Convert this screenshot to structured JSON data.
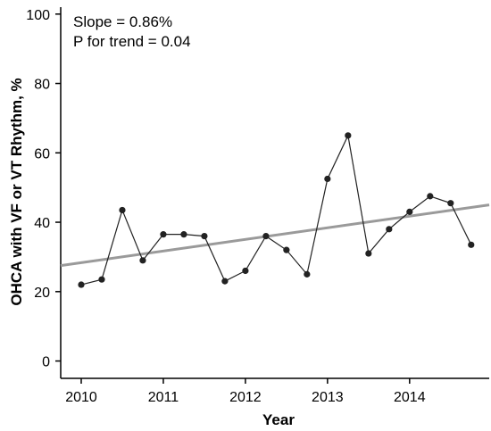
{
  "chart_data": {
    "type": "line",
    "xlabel": "Year",
    "ylabel": "OHCA with VF or VT Rhythm, %",
    "xlim": [
      2009.75,
      2014.97
    ],
    "ylim": [
      -5,
      102
    ],
    "x_ticks": [
      2010,
      2011,
      2012,
      2013,
      2014
    ],
    "y_ticks": [
      0,
      20,
      40,
      60,
      80,
      100
    ],
    "grid": false,
    "legend": "none",
    "annotations": [
      "Slope = 0.86%",
      "P for trend = 0.04"
    ],
    "series": [
      {
        "type": "line-markers",
        "color": "#222222",
        "points": [
          {
            "x": 2010.0,
            "y": 22
          },
          {
            "x": 2010.25,
            "y": 23.5
          },
          {
            "x": 2010.5,
            "y": 43.5
          },
          {
            "x": 2010.75,
            "y": 29
          },
          {
            "x": 2011.0,
            "y": 36.5
          },
          {
            "x": 2011.25,
            "y": 36.5
          },
          {
            "x": 2011.5,
            "y": 36
          },
          {
            "x": 2011.75,
            "y": 23
          },
          {
            "x": 2012.0,
            "y": 26
          },
          {
            "x": 2012.25,
            "y": 36
          },
          {
            "x": 2012.5,
            "y": 32
          },
          {
            "x": 2012.75,
            "y": 25
          },
          {
            "x": 2013.0,
            "y": 52.5
          },
          {
            "x": 2013.25,
            "y": 65
          },
          {
            "x": 2013.5,
            "y": 31
          },
          {
            "x": 2013.75,
            "y": 38
          },
          {
            "x": 2014.0,
            "y": 43
          },
          {
            "x": 2014.25,
            "y": 47.5
          },
          {
            "x": 2014.5,
            "y": 45.5
          },
          {
            "x": 2014.75,
            "y": 33.5
          }
        ]
      },
      {
        "type": "trend-line",
        "color": "#9a9a9a",
        "points": [
          {
            "x": 2009.75,
            "y": 27.5
          },
          {
            "x": 2014.97,
            "y": 45
          }
        ]
      }
    ]
  }
}
